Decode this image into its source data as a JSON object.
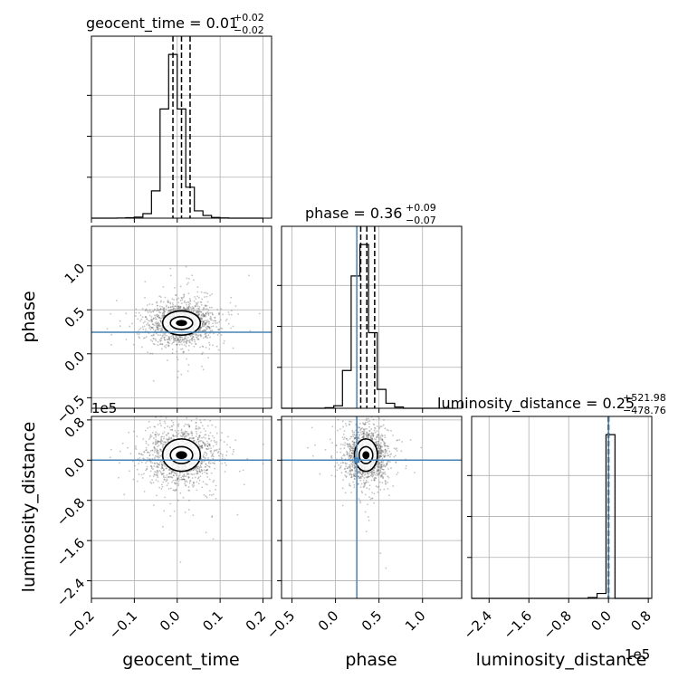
{
  "chart_data": {
    "type": "corner",
    "parameters": [
      "geocent_time",
      "phase",
      "luminosity_distance"
    ],
    "axis_labels": {
      "x": [
        "geocent_time",
        "phase",
        "luminosity_distance"
      ],
      "y": [
        "phase",
        "luminosity_distance"
      ]
    },
    "ranges": {
      "geocent_time": [
        -0.2,
        0.22
      ],
      "phase": [
        -0.62,
        1.45
      ],
      "luminosity_distance": [
        -275000,
        87000
      ]
    },
    "ticks": {
      "geocent_time": {
        "values": [
          -0.2,
          -0.1,
          0.0,
          0.1,
          0.2
        ],
        "labels": [
          "−0.2",
          "−0.1",
          "0.0",
          "0.1",
          "0.2"
        ]
      },
      "phase": {
        "values": [
          -0.5,
          0.0,
          0.5,
          1.0
        ],
        "labels": [
          "−0.5",
          "0.0",
          "0.5",
          "1.0"
        ]
      },
      "luminosity_distance": {
        "values": [
          -240000,
          -160000,
          -80000,
          0,
          80000
        ],
        "labels": [
          "−2.4",
          "−1.6",
          "−0.8",
          "0.0",
          "0.8"
        ]
      }
    },
    "offset_label": "1e5",
    "titles": [
      {
        "param": "geocent_time",
        "text": "geocent_time = 0.01",
        "sup": "+0.02",
        "sub": "−0.02"
      },
      {
        "param": "phase",
        "text": "phase = 0.36",
        "sup": "+0.09",
        "sub": "−0.07"
      },
      {
        "param": "luminosity_distance",
        "text": "luminosity_distance = 0.25",
        "sup": "+521.98",
        "sub": "−478.76"
      }
    ],
    "quantiles": {
      "geocent_time": [
        -0.01,
        0.01,
        0.03
      ],
      "phase": [
        0.29,
        0.36,
        0.45
      ],
      "luminosity_distance": [
        -478.51,
        0.25,
        522.23
      ]
    },
    "truths": {
      "phase": 0.245,
      "luminosity_distance": 0
    },
    "histograms": {
      "geocent_time": {
        "bin_edges": [
          -0.2,
          -0.18,
          -0.16,
          -0.14,
          -0.12,
          -0.1,
          -0.08,
          -0.06,
          -0.04,
          -0.02,
          0.0,
          0.02,
          0.04,
          0.06,
          0.08,
          0.1,
          0.12,
          0.14,
          0.16,
          0.18,
          0.2
        ],
        "counts": [
          0,
          0,
          0,
          2,
          5,
          12,
          50,
          300,
          1200,
          1800,
          1200,
          340,
          80,
          30,
          8,
          3,
          0,
          0,
          0,
          0
        ]
      },
      "phase": {
        "bin_edges": [
          -0.62,
          -0.52,
          -0.42,
          -0.32,
          -0.22,
          -0.12,
          -0.02,
          0.08,
          0.18,
          0.28,
          0.38,
          0.48,
          0.58,
          0.68,
          0.78,
          0.88,
          0.98,
          1.08,
          1.18,
          1.28,
          1.38
        ],
        "counts": [
          0,
          0,
          0,
          0,
          0,
          5,
          20,
          300,
          1050,
          1300,
          600,
          150,
          40,
          10,
          0,
          0,
          0,
          0,
          0,
          0
        ]
      },
      "luminosity_distance": {
        "bin_edges": [
          -275000,
          -257000,
          -239000,
          -221000,
          -203000,
          -185000,
          -167000,
          -149000,
          -131000,
          -113000,
          -95000,
          -77000,
          -59000,
          -41000,
          -23000,
          -5000,
          13000,
          31000,
          49000,
          67000,
          85000
        ],
        "counts": [
          0,
          0,
          0,
          0,
          0,
          0,
          0,
          0,
          0,
          0,
          0,
          0,
          0,
          15,
          90,
          3000,
          0,
          0,
          0,
          0
        ]
      }
    },
    "scatter_center": {
      "geocent_time": 0.01,
      "phase": 0.35,
      "luminosity_distance": 10000
    },
    "scatter_spread": {
      "geocent_time": 0.04,
      "phase": 0.12,
      "luminosity_distance": 28000
    },
    "grid": true,
    "colors": {
      "truth": "#4682b4",
      "hist": "#000000",
      "points": "#555555",
      "grid": "#b0b0b0",
      "contour_fill": "#ffffff"
    }
  }
}
